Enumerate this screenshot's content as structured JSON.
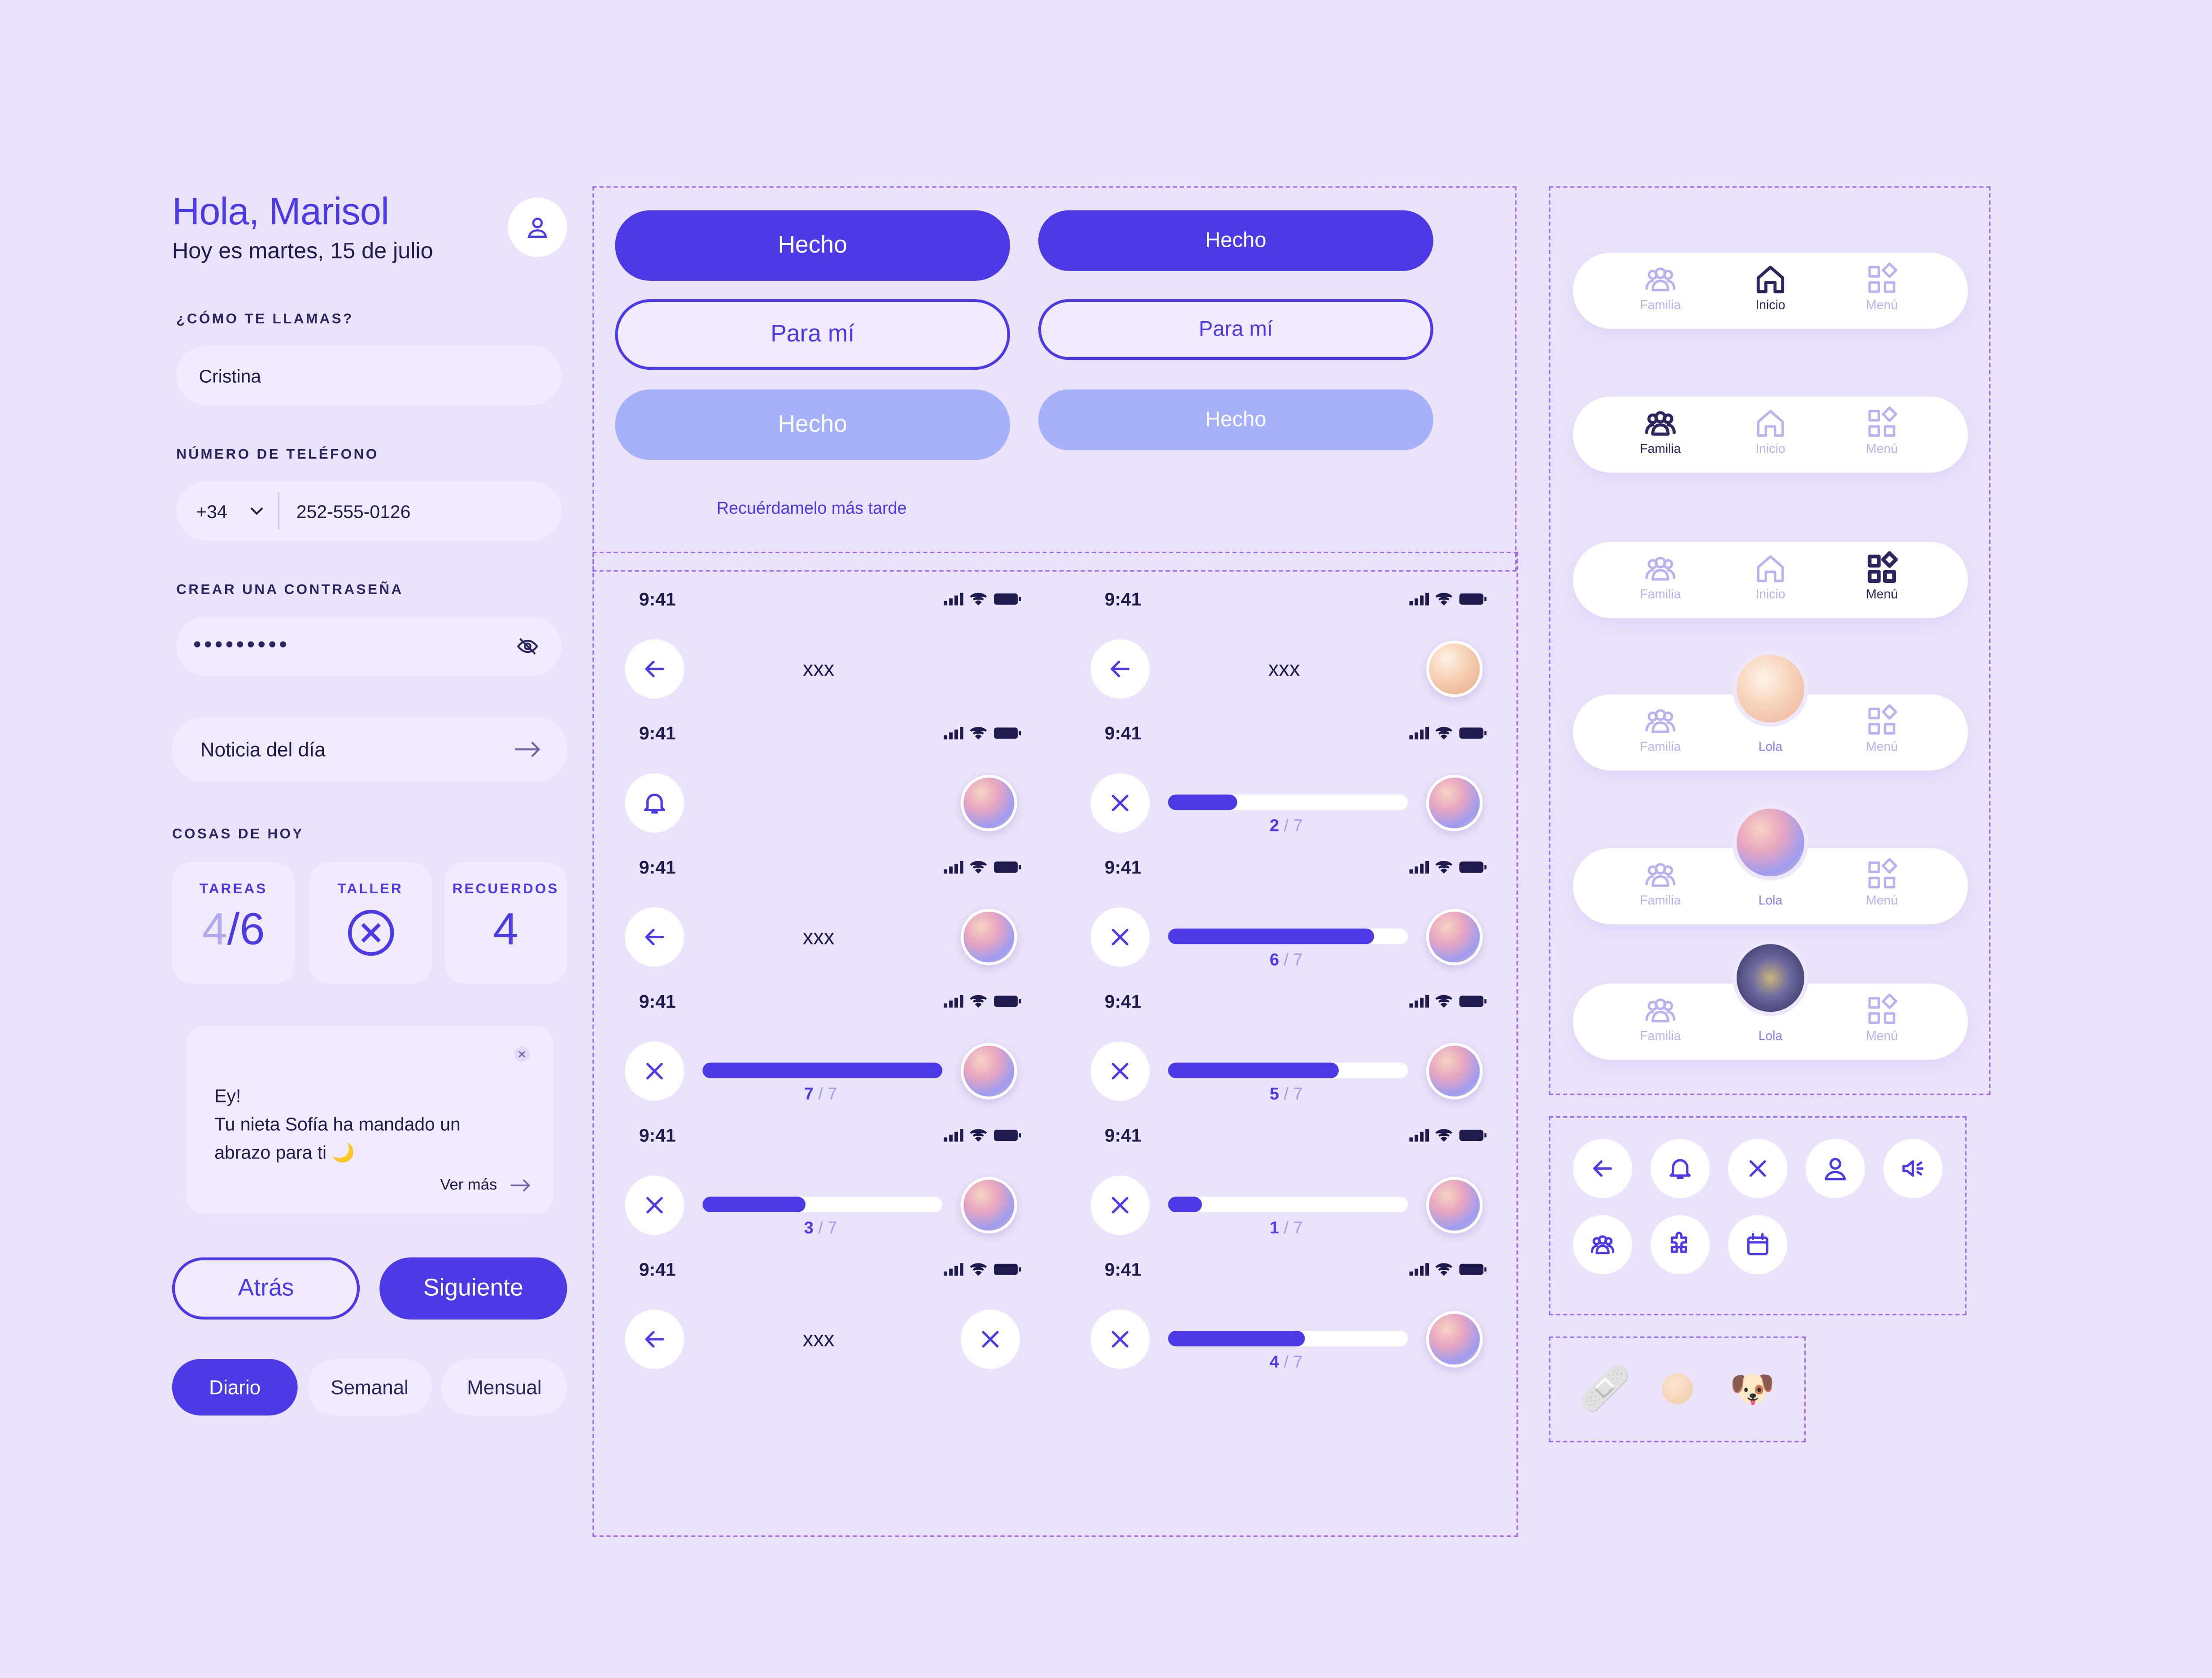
{
  "header": {
    "greeting": "Hola, Marisol",
    "date": "Hoy es martes, 15 de julio",
    "icon": "user-icon"
  },
  "form": {
    "name_label": "¿CÓMO TE LLAMAS?",
    "name_value": "Cristina",
    "phone_label": "NÚMERO DE TELÉFONO",
    "country_code": "+34",
    "phone_value": "252-555-0126",
    "password_label": "CREAR UNA CONTRASEÑA",
    "password_mask": "•••••••••"
  },
  "notice": {
    "label": "Noticia del día",
    "icon": "arrow-right-icon"
  },
  "today": {
    "title": "COSAS DE HOY",
    "cards": [
      {
        "title": "TAREAS",
        "done": "4",
        "sep": "/",
        "total": "6"
      },
      {
        "title": "TALLER",
        "icon": "x-circle-icon"
      },
      {
        "title": "RECUERDOS",
        "value": "4"
      }
    ]
  },
  "message": {
    "line1": "Ey!",
    "line2": "Tu nieta Sofía ha mandado un",
    "line3": "abrazo para ti",
    "emoji": "🌙",
    "more": "Ver más"
  },
  "nav_buttons": {
    "back": "Atrás",
    "next": "Siguiente"
  },
  "segments": [
    "Diario",
    "Semanal",
    "Mensual"
  ],
  "buttons": {
    "done": "Hecho",
    "for_me": "Para mí",
    "remind_later": "Recuérdamelo más tarde"
  },
  "phone": {
    "time": "9:41",
    "placeholder": "xxx"
  },
  "progress": [
    {
      "done": "7",
      "total": "7",
      "ratio": 1.0
    },
    {
      "done": "3",
      "total": "7",
      "ratio": 0.43
    },
    {
      "done": "2",
      "total": "7",
      "ratio": 0.29
    },
    {
      "done": "6",
      "total": "7",
      "ratio": 0.86
    },
    {
      "done": "5",
      "total": "7",
      "ratio": 0.71
    },
    {
      "done": "1",
      "total": "7",
      "ratio": 0.14
    },
    {
      "done": "4",
      "total": "7",
      "ratio": 0.57
    }
  ],
  "tabbar": {
    "family": "Familia",
    "home": "Inicio",
    "menu": "Menú",
    "lola": "Lola"
  },
  "icon_set": [
    "arrow-left-icon",
    "bell-icon",
    "close-icon",
    "user-icon",
    "megaphone-icon",
    "family-icon",
    "puzzle-icon",
    "calendar-icon"
  ],
  "emojis": {
    "bandage": "🩹",
    "dog": "🐶"
  },
  "colors": {
    "accent": "#4b3ae6",
    "background": "#ebe3fb",
    "disabled": "#a5b2fb"
  }
}
